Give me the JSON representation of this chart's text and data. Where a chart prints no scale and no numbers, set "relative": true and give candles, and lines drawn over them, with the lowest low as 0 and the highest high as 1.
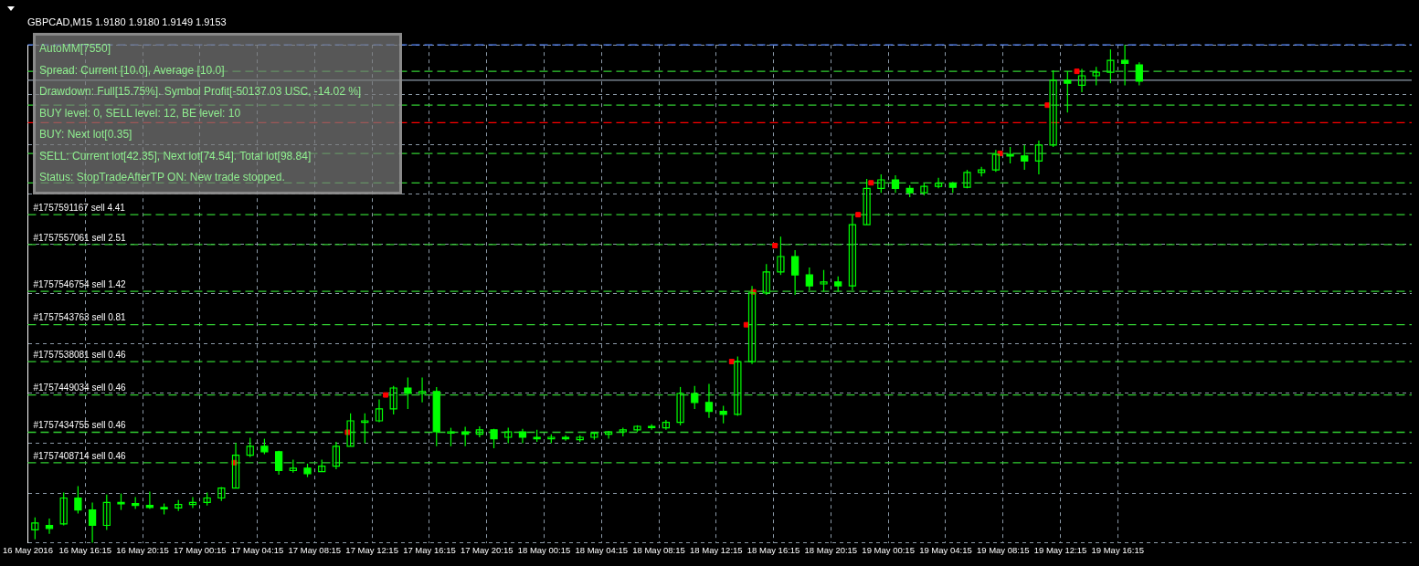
{
  "chart_data": {
    "type": "candlestick",
    "title": "GBPCAD,M15 1.9180 1.9180 1.9149 1.9153",
    "relative": true,
    "color": "#00ff00",
    "grid": true,
    "legend": false,
    "annotations": [
      "AutoMM[7550]",
      "Spread: Current [10.0], Average [10.0]",
      "Drawdown: Full[15.75%]. Symbol Profit[-50137.03 USC, -14.02 %]",
      "BUY level: 0, SELL level: 12, BE level: 10",
      "BUY: Next lot[0.35]",
      "SELL: Current lot[42.35], Next lot[74.54]. Total lot[98.84]",
      "Status: StopTradeAfterTP ON: New trade stopped."
    ],
    "xlim": [
      "2016-05-16T12:15",
      "2016-05-20T12:45"
    ],
    "xticks": [
      {
        "value": "2016-05-16T12:15",
        "label": "16 May 2016"
      },
      {
        "value": "2016-05-16T16:15",
        "label": "16 May 16:15"
      },
      {
        "value": "2016-05-16T20:15",
        "label": "16 May 20:15"
      },
      {
        "value": "2016-05-17T00:15",
        "label": "17 May 00:15"
      },
      {
        "value": "2016-05-17T04:15",
        "label": "17 May 04:15"
      },
      {
        "value": "2016-05-17T08:15",
        "label": "17 May 08:15"
      },
      {
        "value": "2016-05-17T12:15",
        "label": "17 May 12:15"
      },
      {
        "value": "2016-05-17T16:15",
        "label": "17 May 16:15"
      },
      {
        "value": "2016-05-17T20:15",
        "label": "17 May 20:15"
      },
      {
        "value": "2016-05-18T00:15",
        "label": "18 May 00:15"
      },
      {
        "value": "2016-05-18T04:15",
        "label": "18 May 04:15"
      },
      {
        "value": "2016-05-18T08:15",
        "label": "18 May 08:15"
      },
      {
        "value": "2016-05-18T12:15",
        "label": "18 May 12:15"
      },
      {
        "value": "2016-05-18T16:15",
        "label": "18 May 16:15"
      },
      {
        "value": "2016-05-18T20:15",
        "label": "18 May 20:15"
      },
      {
        "value": "2016-05-19T00:15",
        "label": "19 May 00:15"
      },
      {
        "value": "2016-05-19T04:15",
        "label": "19 May 04:15"
      },
      {
        "value": "2016-05-19T08:15",
        "label": "19 May 08:15"
      },
      {
        "value": "2016-05-19T12:15",
        "label": "19 May 12:15"
      },
      {
        "value": "2016-05-19T16:15",
        "label": "19 May 16:15"
      }
    ],
    "x": [
      "2016-05-16T12:45",
      "2016-05-16T13:45",
      "2016-05-16T14:45",
      "2016-05-16T15:45",
      "2016-05-16T16:45",
      "2016-05-16T17:45",
      "2016-05-16T18:45",
      "2016-05-16T19:45",
      "2016-05-16T20:45",
      "2016-05-16T21:45",
      "2016-05-16T22:45",
      "2016-05-16T23:45",
      "2016-05-17T00:45",
      "2016-05-17T01:45",
      "2016-05-17T02:45",
      "2016-05-17T03:45",
      "2016-05-17T04:45",
      "2016-05-17T05:45",
      "2016-05-17T06:45",
      "2016-05-17T07:45",
      "2016-05-17T08:45",
      "2016-05-17T09:45",
      "2016-05-17T10:45",
      "2016-05-17T11:45",
      "2016-05-17T12:45",
      "2016-05-17T13:45",
      "2016-05-17T14:45",
      "2016-05-17T15:45",
      "2016-05-17T16:45",
      "2016-05-17T17:45",
      "2016-05-17T18:45",
      "2016-05-17T19:45",
      "2016-05-17T20:45",
      "2016-05-17T21:45",
      "2016-05-17T22:45",
      "2016-05-17T23:45",
      "2016-05-18T00:45",
      "2016-05-18T01:45",
      "2016-05-18T02:45",
      "2016-05-18T03:45",
      "2016-05-18T04:45",
      "2016-05-18T05:45",
      "2016-05-18T06:45",
      "2016-05-18T07:45",
      "2016-05-18T08:45",
      "2016-05-18T09:45",
      "2016-05-18T10:45",
      "2016-05-18T11:45",
      "2016-05-18T12:45",
      "2016-05-18T13:45",
      "2016-05-18T14:45",
      "2016-05-18T15:45",
      "2016-05-18T16:45",
      "2016-05-18T17:45",
      "2016-05-18T18:45",
      "2016-05-18T19:45",
      "2016-05-18T20:45",
      "2016-05-18T21:45",
      "2016-05-18T22:45",
      "2016-05-18T23:45",
      "2016-05-19T00:45",
      "2016-05-19T01:45",
      "2016-05-19T02:45",
      "2016-05-19T03:45",
      "2016-05-19T04:45",
      "2016-05-19T05:45",
      "2016-05-19T06:45",
      "2016-05-19T07:45",
      "2016-05-19T08:45",
      "2016-05-19T09:45",
      "2016-05-19T10:45",
      "2016-05-19T11:45",
      "2016-05-19T12:45",
      "2016-05-19T13:45",
      "2016-05-19T14:45",
      "2016-05-19T15:45",
      "2016-05-19T16:45",
      "2016-05-19T17:45"
    ],
    "ohlc": [
      [
        0.026,
        0.051,
        0.007,
        0.04
      ],
      [
        0.035,
        0.049,
        0.018,
        0.029
      ],
      [
        0.038,
        0.101,
        0.035,
        0.09
      ],
      [
        0.09,
        0.114,
        0.059,
        0.066
      ],
      [
        0.066,
        0.081,
        0,
        0.035
      ],
      [
        0.035,
        0.097,
        0.026,
        0.081
      ],
      [
        0.081,
        0.099,
        0.066,
        0.079
      ],
      [
        0.079,
        0.092,
        0.068,
        0.075
      ],
      [
        0.075,
        0.103,
        0.068,
        0.071
      ],
      [
        0.071,
        0.079,
        0.057,
        0.07
      ],
      [
        0.07,
        0.086,
        0.064,
        0.077
      ],
      [
        0.077,
        0.092,
        0.07,
        0.081
      ],
      [
        0.081,
        0.101,
        0.075,
        0.09
      ],
      [
        0.09,
        0.112,
        0.084,
        0.11
      ],
      [
        0.11,
        0.201,
        0.11,
        0.176
      ],
      [
        0.176,
        0.211,
        0.172,
        0.194
      ],
      [
        0.194,
        0.209,
        0.178,
        0.183
      ],
      [
        0.183,
        0.185,
        0.137,
        0.145
      ],
      [
        0.145,
        0.167,
        0.141,
        0.15
      ],
      [
        0.15,
        0.159,
        0.132,
        0.139
      ],
      [
        0.143,
        0.167,
        0.143,
        0.154
      ],
      [
        0.154,
        0.203,
        0.148,
        0.194
      ],
      [
        0.194,
        0.26,
        0.194,
        0.245
      ],
      [
        0.242,
        0.26,
        0.2,
        0.245
      ],
      [
        0.245,
        0.288,
        0.242,
        0.269
      ],
      [
        0.269,
        0.315,
        0.258,
        0.311
      ],
      [
        0.311,
        0.332,
        0.269,
        0.3
      ],
      [
        0.3,
        0.332,
        0.282,
        0.304
      ],
      [
        0.304,
        0.313,
        0.194,
        0.223
      ],
      [
        0.223,
        0.231,
        0.194,
        0.223
      ],
      [
        0.223,
        0.233,
        0.194,
        0.218
      ],
      [
        0.218,
        0.234,
        0.212,
        0.227
      ],
      [
        0.227,
        0.229,
        0.19,
        0.209
      ],
      [
        0.212,
        0.231,
        0.2,
        0.223
      ],
      [
        0.223,
        0.229,
        0.2,
        0.212
      ],
      [
        0.212,
        0.227,
        0.203,
        0.209
      ],
      [
        0.209,
        0.218,
        0.2,
        0.212
      ],
      [
        0.212,
        0.216,
        0.205,
        0.209
      ],
      [
        0.207,
        0.216,
        0.203,
        0.212
      ],
      [
        0.212,
        0.223,
        0.207,
        0.22
      ],
      [
        0.218,
        0.225,
        0.209,
        0.223
      ],
      [
        0.223,
        0.231,
        0.214,
        0.227
      ],
      [
        0.227,
        0.236,
        0.223,
        0.234
      ],
      [
        0.234,
        0.238,
        0.227,
        0.233
      ],
      [
        0.231,
        0.247,
        0.227,
        0.242
      ],
      [
        0.242,
        0.313,
        0.236,
        0.3
      ],
      [
        0.3,
        0.315,
        0.269,
        0.282
      ],
      [
        0.282,
        0.319,
        0.251,
        0.264
      ],
      [
        0.264,
        0.275,
        0.24,
        0.258
      ],
      [
        0.258,
        0.374,
        0.255,
        0.364
      ],
      [
        0.364,
        0.516,
        0.359,
        0.502
      ],
      [
        0.502,
        0.56,
        0.498,
        0.544
      ],
      [
        0.544,
        0.615,
        0.538,
        0.575
      ],
      [
        0.575,
        0.588,
        0.498,
        0.538
      ],
      [
        0.538,
        0.553,
        0.507,
        0.516
      ],
      [
        0.52,
        0.548,
        0.505,
        0.524
      ],
      [
        0.524,
        0.535,
        0.505,
        0.516
      ],
      [
        0.516,
        0.658,
        0.507,
        0.639
      ],
      [
        0.639,
        0.731,
        0.639,
        0.712
      ],
      [
        0.712,
        0.74,
        0.703,
        0.729
      ],
      [
        0.729,
        0.738,
        0.703,
        0.712
      ],
      [
        0.712,
        0.718,
        0.694,
        0.703
      ],
      [
        0.703,
        0.722,
        0.698,
        0.716
      ],
      [
        0.716,
        0.733,
        0.712,
        0.722
      ],
      [
        0.722,
        0.725,
        0.703,
        0.714
      ],
      [
        0.714,
        0.749,
        0.712,
        0.744
      ],
      [
        0.744,
        0.755,
        0.736,
        0.749
      ],
      [
        0.749,
        0.789,
        0.745,
        0.78
      ],
      [
        0.78,
        0.795,
        0.762,
        0.777
      ],
      [
        0.777,
        0.799,
        0.749,
        0.767
      ],
      [
        0.767,
        0.808,
        0.74,
        0.799
      ],
      [
        0.799,
        0.949,
        0.795,
        0.929
      ],
      [
        0.929,
        0.947,
        0.864,
        0.923
      ],
      [
        0.919,
        0.952,
        0.905,
        0.938
      ],
      [
        0.938,
        0.956,
        0.919,
        0.945
      ],
      [
        0.945,
        0.991,
        0.923,
        0.969
      ],
      [
        0.969,
        1,
        0.919,
        0.963
      ],
      [
        0.96,
        0.965,
        0.919,
        0.927
      ]
    ],
    "series": [
      {
        "type": "scatter",
        "marker": "square",
        "color": "#ff0000",
        "x": [
          "2016-05-17T02:39",
          "2016-05-17T10:33",
          "2016-05-17T13:12",
          "2016-05-18T13:20",
          "2016-05-18T14:21",
          "2016-05-18T14:51",
          "2016-05-18T16:21",
          "2016-05-18T22:09",
          "2016-05-18T23:03",
          "2016-05-19T08:03",
          "2016-05-19T11:21",
          "2016-05-19T13:24"
        ],
        "values": [
          0.161,
          0.222,
          0.297,
          0.364,
          0.438,
          0.504,
          0.597,
          0.659,
          0.723,
          0.782,
          0.879,
          0.947
        ]
      }
    ],
    "ref_lines": [
      {
        "axis": "y",
        "value": 1,
        "color": "#5b8cff",
        "line_style": "dashed"
      },
      {
        "axis": "y",
        "value": 0.947,
        "color": "#32cd32",
        "line_style": "dashed"
      },
      {
        "axis": "y",
        "value": 0.929,
        "color": "#8c9aa8",
        "line_style": "solid"
      },
      {
        "axis": "y",
        "value": 0.879,
        "color": "#32cd32",
        "line_style": "dashed"
      },
      {
        "axis": "y",
        "value": 0.844,
        "color": "#ff0000",
        "line_style": "dashed"
      },
      {
        "axis": "y",
        "value": 0.782,
        "color": "#32cd32",
        "line_style": "dashed"
      },
      {
        "axis": "y",
        "value": 0.723,
        "color": "#32cd32",
        "line_style": "dashed"
      },
      {
        "axis": "y",
        "value": 0.659,
        "label": "#1757591167 sell 4.41",
        "color": "#32cd32",
        "line_style": "dashed"
      },
      {
        "axis": "y",
        "value": 0.599,
        "label": "#1757557061 sell 2.51",
        "color": "#32cd32",
        "line_style": "dashed"
      },
      {
        "axis": "y",
        "value": 0.505,
        "label": "#1757546754 sell 1.42",
        "color": "#32cd32",
        "line_style": "dashed"
      },
      {
        "axis": "y",
        "value": 0.438,
        "label": "#1757543763 sell 0.81",
        "color": "#32cd32",
        "line_style": "dashed"
      },
      {
        "axis": "y",
        "value": 0.364,
        "label": "#1757538081 sell 0.46",
        "color": "#32cd32",
        "line_style": "dashed"
      },
      {
        "axis": "y",
        "value": 0.297,
        "label": "#1757449034 sell 0.46",
        "color": "#32cd32",
        "line_style": "dashed"
      },
      {
        "axis": "y",
        "value": 0.222,
        "label": "#1757434755 sell 0.46",
        "color": "#32cd32",
        "line_style": "dashed"
      },
      {
        "axis": "y",
        "value": 0.161,
        "label": "#1757408714 sell 0.46",
        "color": "#32cd32",
        "line_style": "dashed"
      }
    ]
  }
}
